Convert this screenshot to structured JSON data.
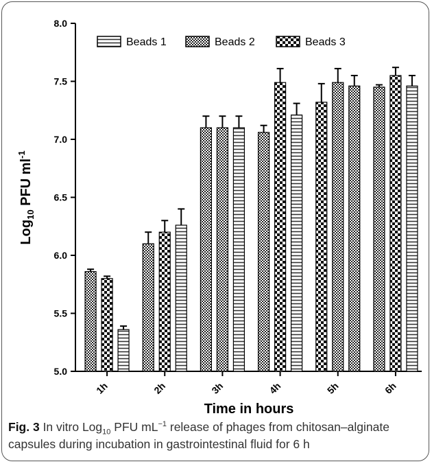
{
  "chart_data": {
    "type": "bar",
    "categories": [
      "1h",
      "2h",
      "3h",
      "4h",
      "5h",
      "6h"
    ],
    "series": [
      {
        "name": "Beads 1",
        "values": [
          5.86,
          6.1,
          7.1,
          7.06,
          7.32,
          7.45
        ],
        "errors": [
          0.02,
          0.1,
          0.1,
          0.06,
          0.16,
          0.02
        ]
      },
      {
        "name": "Beads 2",
        "values": [
          5.8,
          6.2,
          7.1,
          7.49,
          7.49,
          7.55
        ],
        "errors": [
          0.02,
          0.1,
          0.1,
          0.12,
          0.12,
          0.07
        ]
      },
      {
        "name": "Beads 3",
        "values": [
          5.36,
          6.26,
          7.1,
          7.21,
          7.46,
          7.46
        ],
        "errors": [
          0.03,
          0.14,
          0.1,
          0.1,
          0.09,
          0.09
        ]
      }
    ],
    "ylim": [
      5.0,
      8.0
    ],
    "yticks": [
      "5.0",
      "5.5",
      "6.0",
      "6.5",
      "7.0",
      "7.5",
      "8.0"
    ],
    "ylabel_main": "Log",
    "ylabel_sub": "10",
    "ylabel_rest": " PFU ml",
    "ylabel_sup": "-1",
    "xlabel": "Time in hours",
    "legend_position": "top",
    "grid": false
  },
  "caption": {
    "fig_label": "Fig. 3",
    "text_part1": " In vitro Log",
    "sub": "10",
    "text_part2": " PFU mL",
    "sup": "−1",
    "text_part3": " release of phages from chitosan–alginate capsules during incubation in gastrointestinal fluid for 6 h"
  },
  "colors": {
    "axis": "#000000",
    "bar_stroke": "#000000",
    "caption_text": "#333333"
  }
}
